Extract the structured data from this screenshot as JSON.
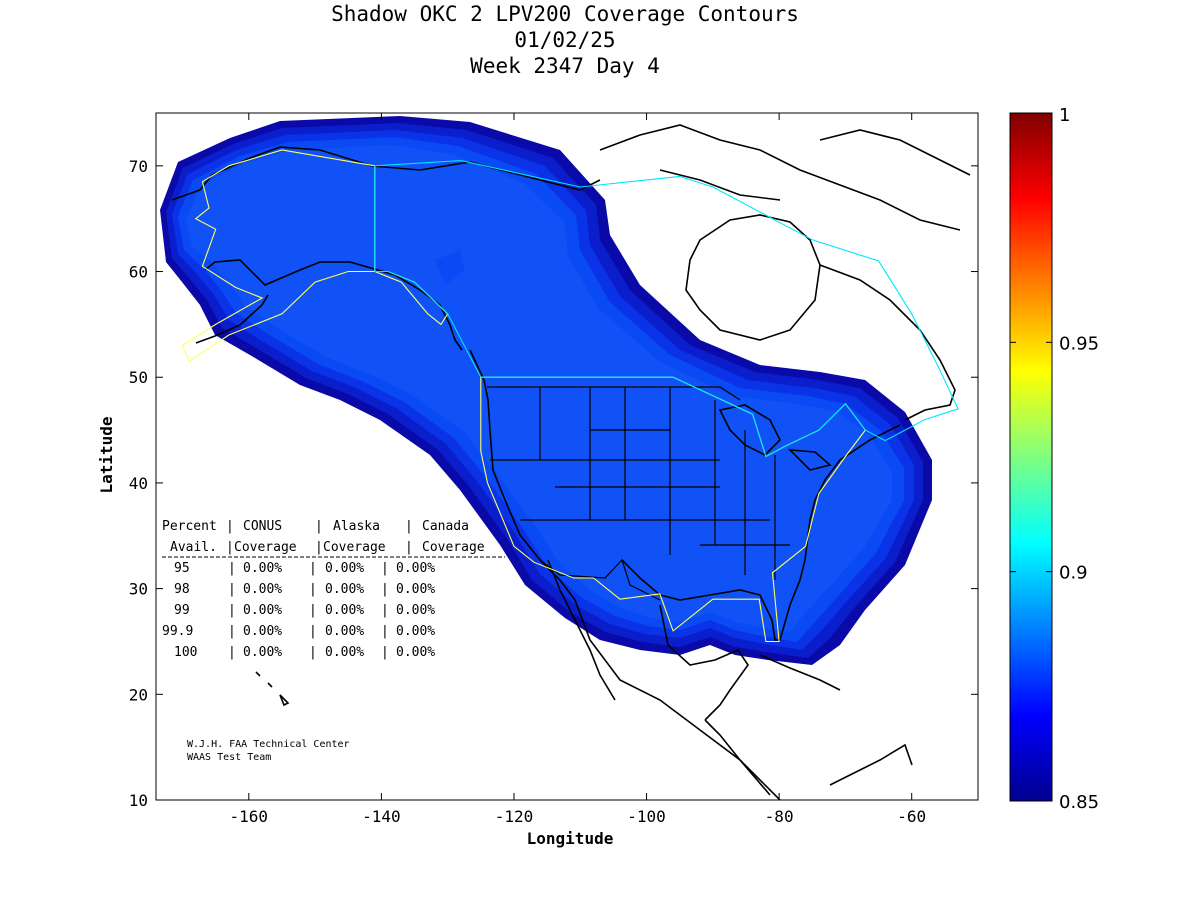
{
  "chart_data": {
    "type": "contour_map",
    "title": [
      "Shadow OKC 2 LPV200 Coverage Contours",
      "01/02/25",
      "Week 2347 Day 4"
    ],
    "xlabel": "Longitude",
    "ylabel": "Latitude",
    "xlim": [
      -174,
      -50
    ],
    "ylim": [
      10,
      75
    ],
    "xticks": [
      -160,
      -140,
      -120,
      -100,
      -80,
      -60
    ],
    "yticks": [
      10,
      20,
      30,
      40,
      50,
      60,
      70
    ],
    "colorbar": {
      "range": [
        0.85,
        1.0
      ],
      "ticks": [
        {
          "value": 0.85,
          "label": "0.85"
        },
        {
          "value": 0.9,
          "label": "0.9"
        },
        {
          "value": 0.95,
          "label": "0.95"
        },
        {
          "value": 1.0,
          "label": "1"
        }
      ],
      "colormap": "jet",
      "stops": [
        "#00008f",
        "#0000ff",
        "#0080ff",
        "#00ffff",
        "#80ff80",
        "#ffff00",
        "#ff8000",
        "#ff0000",
        "#800000"
      ]
    },
    "coverage_colors": [
      "#0a0aa8",
      "#0a1ecc",
      "#0a32e6",
      "#0a4af4",
      "#1052f6"
    ],
    "coverage_table": {
      "header": [
        [
          "Percent",
          "CONUS",
          "Alaska",
          "Canada"
        ],
        [
          "Avail.",
          "Coverage",
          "Coverage",
          "Coverage"
        ]
      ],
      "rows": [
        [
          "95",
          "0.00%",
          "0.00%",
          "0.00%"
        ],
        [
          "98",
          "0.00%",
          "0.00%",
          "0.00%"
        ],
        [
          "99",
          "0.00%",
          "0.00%",
          "0.00%"
        ],
        [
          "99.9",
          "0.00%",
          "0.00%",
          "0.00%"
        ],
        [
          "100",
          "0.00%",
          "0.00%",
          "0.00%"
        ]
      ]
    },
    "credits": [
      "W.J.H. FAA Technical Center",
      "WAAS Test Team"
    ],
    "service_boundaries": [
      {
        "name": "CONUS",
        "color": "#ffff66",
        "points": [
          [
            -125,
            50
          ],
          [
            -96,
            50
          ],
          [
            -84,
            46.5
          ],
          [
            -82,
            42.5
          ],
          [
            -79,
            43.5
          ],
          [
            -74,
            45
          ],
          [
            -70,
            47.5
          ],
          [
            -67,
            45
          ],
          [
            -70,
            42.5
          ],
          [
            -74,
            39
          ],
          [
            -76,
            34
          ],
          [
            -81,
            31.5
          ],
          [
            -80,
            25
          ],
          [
            -82,
            25
          ],
          [
            -83,
            29
          ],
          [
            -90,
            29
          ],
          [
            -96,
            26
          ],
          [
            -98,
            29.5
          ],
          [
            -104,
            29
          ],
          [
            -108,
            31
          ],
          [
            -111,
            31
          ],
          [
            -117,
            32.5
          ],
          [
            -120,
            34
          ],
          [
            -124,
            40
          ],
          [
            -125,
            43
          ],
          [
            -125,
            50
          ]
        ]
      },
      {
        "name": "Alaska",
        "color": "#ffff66",
        "points": [
          [
            -141,
            70
          ],
          [
            -155,
            71.5
          ],
          [
            -163,
            70
          ],
          [
            -167,
            68.5
          ],
          [
            -166,
            66
          ],
          [
            -168,
            65
          ],
          [
            -165,
            64
          ],
          [
            -167,
            60.5
          ],
          [
            -162,
            58.5
          ],
          [
            -158,
            57.5
          ],
          [
            -165,
            55
          ],
          [
            -170,
            53
          ],
          [
            -169,
            51.5
          ],
          [
            -163,
            54
          ],
          [
            -155,
            56
          ],
          [
            -150,
            59
          ],
          [
            -145,
            60
          ],
          [
            -141,
            60
          ],
          [
            -137,
            59
          ],
          [
            -133,
            56
          ],
          [
            -131,
            55
          ],
          [
            -130,
            56
          ],
          [
            -135,
            59
          ],
          [
            -139,
            60
          ],
          [
            -141,
            60
          ],
          [
            -141,
            70
          ]
        ]
      },
      {
        "name": "Canada",
        "color": "#00e5ff",
        "points": [
          [
            -141,
            70
          ],
          [
            -128,
            70.5
          ],
          [
            -110,
            68
          ],
          [
            -95,
            69
          ],
          [
            -90,
            68
          ],
          [
            -75,
            63
          ],
          [
            -65,
            61
          ],
          [
            -60,
            56
          ],
          [
            -56,
            51
          ],
          [
            -53,
            47
          ],
          [
            -58,
            46
          ],
          [
            -64,
            44
          ],
          [
            -67,
            45
          ],
          [
            -70,
            47.5
          ],
          [
            -74,
            45
          ],
          [
            -79,
            43.5
          ],
          [
            -82,
            42.5
          ],
          [
            -84,
            46.5
          ],
          [
            -96,
            50
          ],
          [
            -125,
            50
          ],
          [
            -130,
            56
          ],
          [
            -135,
            59
          ],
          [
            -139,
            60
          ],
          [
            -141,
            60
          ],
          [
            -141,
            70
          ]
        ]
      }
    ]
  }
}
